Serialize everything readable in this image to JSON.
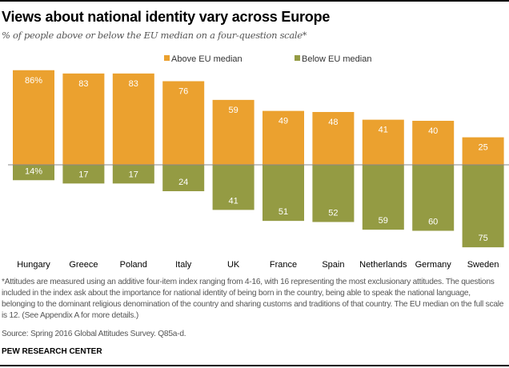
{
  "chart_data": {
    "type": "bar",
    "title": "Views about national identity vary across Europe",
    "subtitle": "% of people above or below the EU median on a four-question scale*",
    "categories": [
      "Hungary",
      "Greece",
      "Poland",
      "Italy",
      "UK",
      "France",
      "Spain",
      "Netherlands",
      "Germany",
      "Sweden"
    ],
    "series": [
      {
        "name": "Above EU median",
        "color": "#EBA12F",
        "values": [
          86,
          83,
          83,
          76,
          59,
          49,
          48,
          41,
          40,
          25
        ],
        "labels": [
          "86%",
          "83",
          "83",
          "76",
          "59",
          "49",
          "48",
          "41",
          "40",
          "25"
        ]
      },
      {
        "name": "Below EU median",
        "color": "#949B43",
        "values": [
          14,
          17,
          17,
          24,
          41,
          51,
          52,
          59,
          60,
          75
        ],
        "labels": [
          "14%",
          "17",
          "17",
          "24",
          "41",
          "51",
          "52",
          "59",
          "60",
          "75"
        ]
      }
    ],
    "ylim": [
      -75,
      86
    ],
    "grid": false,
    "legend": "top-center"
  },
  "footer": {
    "note": "*Attitudes are measured using an additive four-item index ranging from 4-16, with 16 representing the most exclusionary attitudes. The questions included in the index ask about the importance for national identity of being born in the country, being able to speak the national language, belonging to the dominant religious denomination of the country and sharing customs and traditions of that country. The EU median on the full scale is 12. (See Appendix A for more details.)",
    "source": "Source: Spring 2016 Global Attitudes Survey. Q85a-d.",
    "brand": "PEW RESEARCH CENTER"
  }
}
